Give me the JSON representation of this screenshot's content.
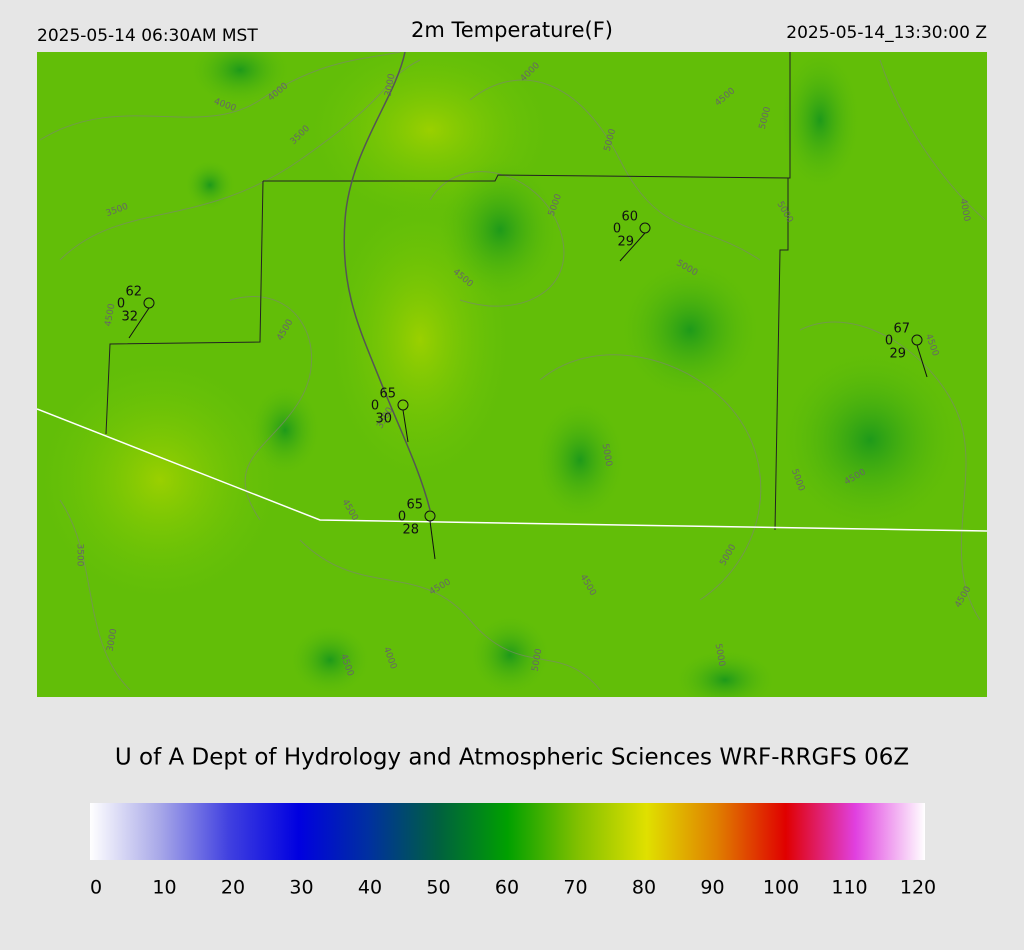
{
  "header": {
    "local_time": "2025-05-14 06:30AM MST",
    "title": "2m Temperature(F)",
    "utc_time": "2025-05-14_13:30:00 Z"
  },
  "stations": [
    {
      "temperature": "62",
      "cloud": "0",
      "dewpoint": "32"
    },
    {
      "temperature": "60",
      "cloud": "0",
      "dewpoint": "29"
    },
    {
      "temperature": "67",
      "cloud": "0",
      "dewpoint": "29"
    },
    {
      "temperature": "65",
      "cloud": "0",
      "dewpoint": "30"
    },
    {
      "temperature": "65",
      "cloud": "0",
      "dewpoint": "28"
    }
  ],
  "contour_labels": [
    "4000",
    "4000",
    "3000",
    "3500",
    "4000",
    "4500",
    "5000",
    "5000",
    "3500",
    "5000",
    "5000",
    "4000",
    "4500",
    "5000",
    "4500",
    "4500",
    "4500",
    "3500",
    "5000",
    "5000",
    "4500",
    "3500",
    "4500",
    "4500",
    "4500",
    "5000",
    "4500",
    "3000",
    "4500",
    "4000",
    "5000",
    "5000"
  ],
  "footer": {
    "credit": "U of A Dept of Hydrology and Atmospheric Sciences WRF-RRGFS 06Z"
  },
  "colorbar": {
    "colors": [
      "#ffffff",
      "#a8a8e8",
      "#4040e0",
      "#0000e0",
      "#0030a0",
      "#006040",
      "#00a000",
      "#80c000",
      "#e0e000",
      "#e08000",
      "#e00000",
      "#e040e0",
      "#ffffff"
    ],
    "ticks": [
      0,
      10,
      20,
      30,
      40,
      50,
      60,
      70,
      80,
      90,
      100,
      110,
      120
    ]
  }
}
